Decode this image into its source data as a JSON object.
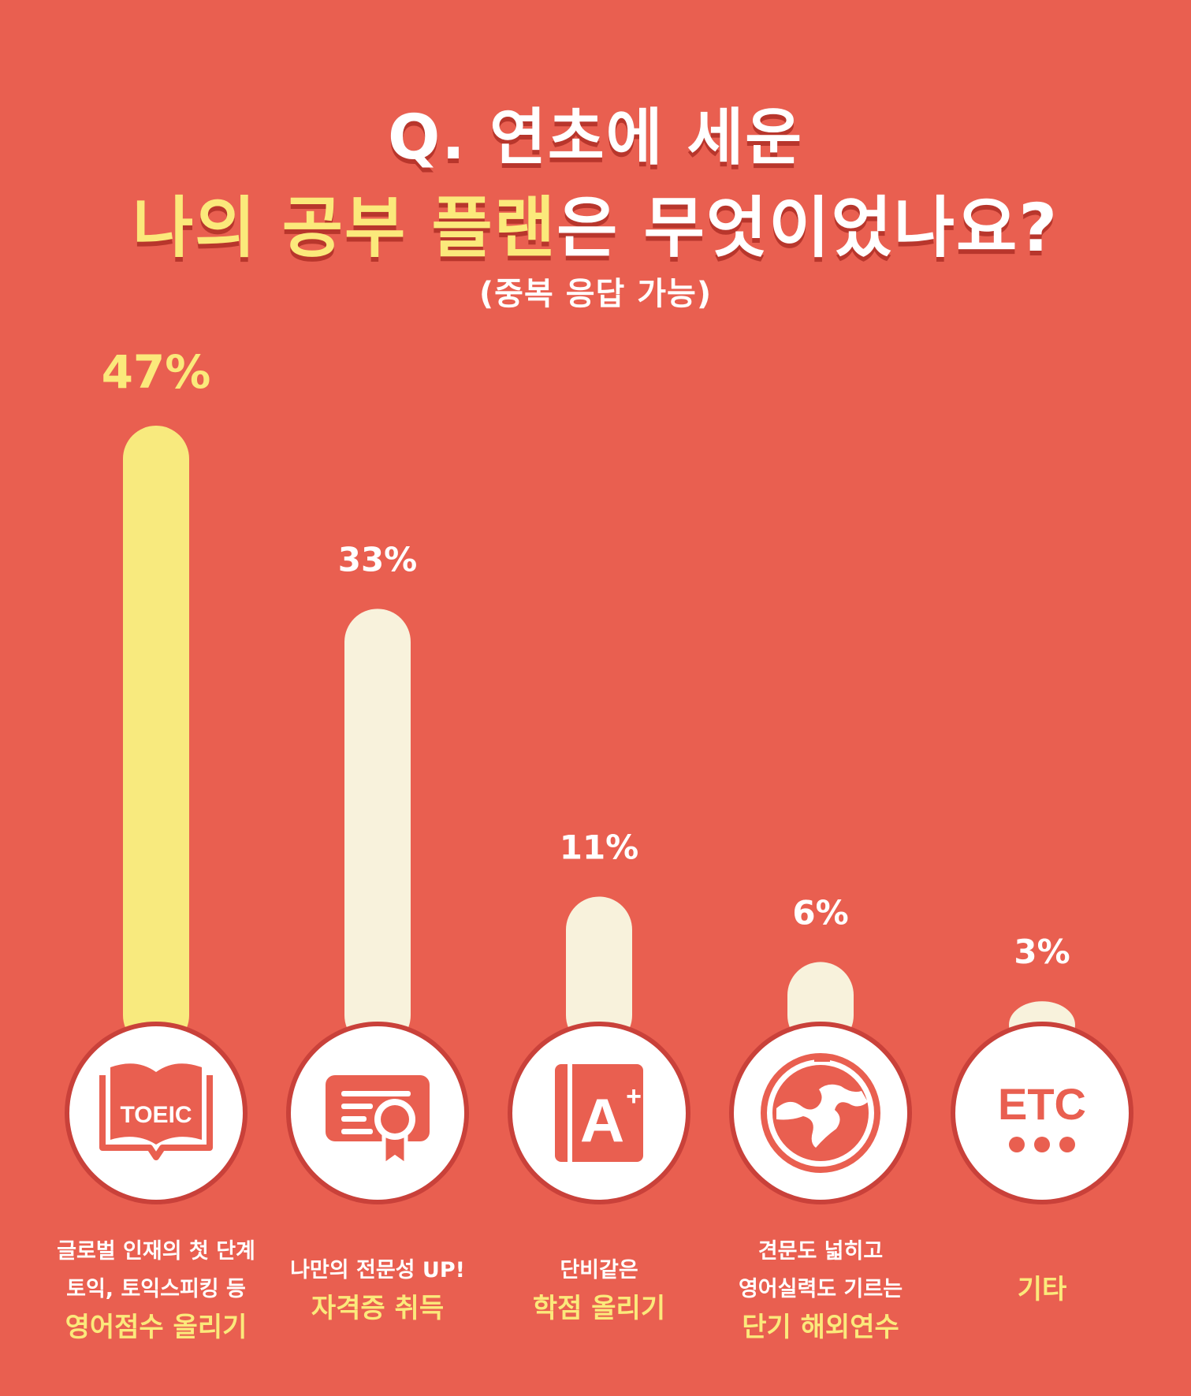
{
  "title": {
    "line1": "Q. 연초에 세운",
    "line2_highlight": "나의 공부 플랜",
    "line2_rest": "은 무엇이었나요?",
    "subtitle": "(중복 응답 가능)"
  },
  "chart_data": {
    "type": "bar",
    "categories": [
      "영어점수 올리기",
      "자격증 취득",
      "학점 올리기",
      "단기 해외연수",
      "기타"
    ],
    "values": [
      47,
      33,
      11,
      6,
      3
    ],
    "value_labels": [
      "47%",
      "33%",
      "11%",
      "6%",
      "3%"
    ],
    "unit": "%",
    "highlight_index": 0
  },
  "colors": {
    "background": "#e95f50",
    "bar_highlight": "#f8ea7e",
    "bar_default": "#f8f2dc",
    "label_highlight": "#fbe97b",
    "label_default": "#ffffff",
    "circle_fill": "#ffffff",
    "circle_ring": "#c9413a",
    "icon_color": "#e95f50"
  },
  "icons": [
    "book-icon",
    "certificate-icon",
    "grade-a-plus-icon",
    "globe-icon",
    "etc-icon"
  ],
  "icon_texts": {
    "toeic": "TOEIC",
    "etc": "ETC"
  },
  "captions": [
    {
      "lines": [
        "글로벌 인재의 첫 단계",
        "토익, 토익스피킹 등"
      ],
      "emphasis": "영어점수 올리기"
    },
    {
      "lines": [
        "나만의 전문성 UP!"
      ],
      "emphasis": "자격증 취득"
    },
    {
      "lines": [
        "단비같은"
      ],
      "emphasis": "학점 올리기"
    },
    {
      "lines": [
        "견문도 넓히고",
        "영어실력도 기르는"
      ],
      "emphasis": "단기 해외연수"
    },
    {
      "lines": [],
      "emphasis": "기타"
    }
  ]
}
